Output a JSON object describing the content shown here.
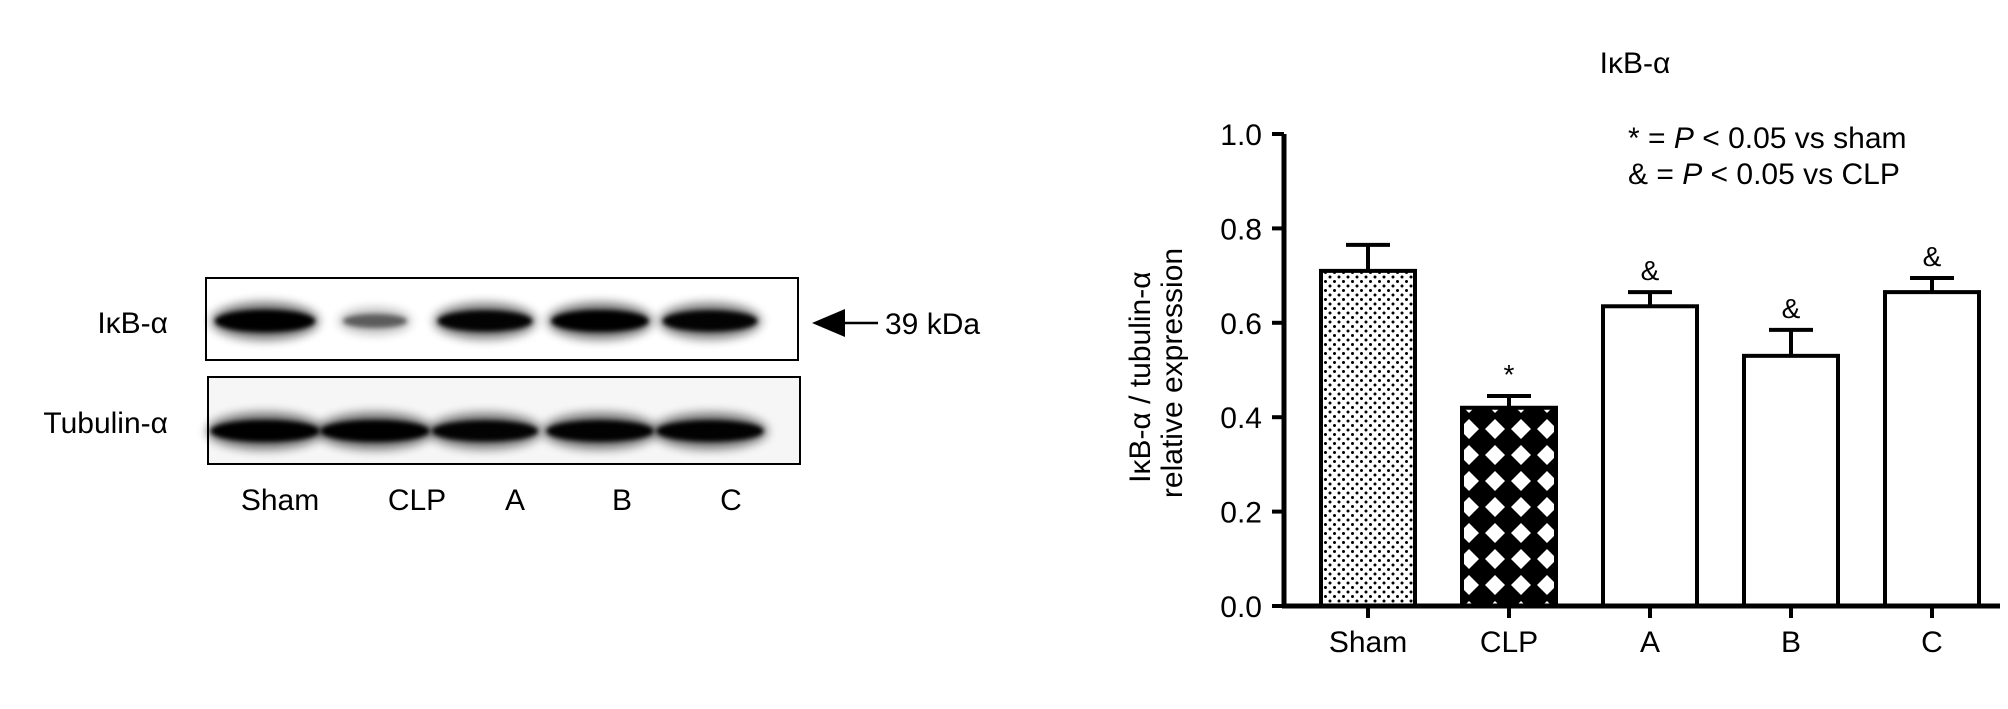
{
  "blot": {
    "rows": [
      {
        "label": "IκB-α",
        "intensities": [
          1.0,
          0.35,
          0.9,
          0.95,
          0.9
        ]
      },
      {
        "label": "Tubulin-α",
        "intensities": [
          0.95,
          0.95,
          0.9,
          0.92,
          0.92
        ]
      }
    ],
    "lanes": [
      "Sham",
      "CLP",
      "A",
      "B",
      "C"
    ],
    "marker": "39 kDa"
  },
  "chart_data": {
    "type": "bar",
    "title": "IκB-α",
    "ylabel_line1": "IκB-α / tubulin-α",
    "ylabel_line2": "relative expression",
    "xlabel": "",
    "categories": [
      "Sham",
      "CLP",
      "A",
      "B",
      "C"
    ],
    "values": [
      0.71,
      0.42,
      0.635,
      0.53,
      0.665
    ],
    "errors": [
      0.055,
      0.025,
      0.03,
      0.055,
      0.03
    ],
    "annotations": [
      "",
      "*",
      "&",
      "&",
      "&"
    ],
    "fills": [
      "dots",
      "crosshatch",
      "white",
      "white",
      "white"
    ],
    "ylim": [
      0,
      1.0
    ],
    "yticks": [
      "0.0",
      "0.2",
      "0.4",
      "0.6",
      "0.8",
      "1.0"
    ],
    "legend_line1": {
      "prefix": "* = ",
      "p": "P",
      "suffix": " < 0.05 vs sham"
    },
    "legend_line2": {
      "prefix": "& = ",
      "p": "P",
      "suffix": " < 0.05 vs CLP"
    }
  }
}
